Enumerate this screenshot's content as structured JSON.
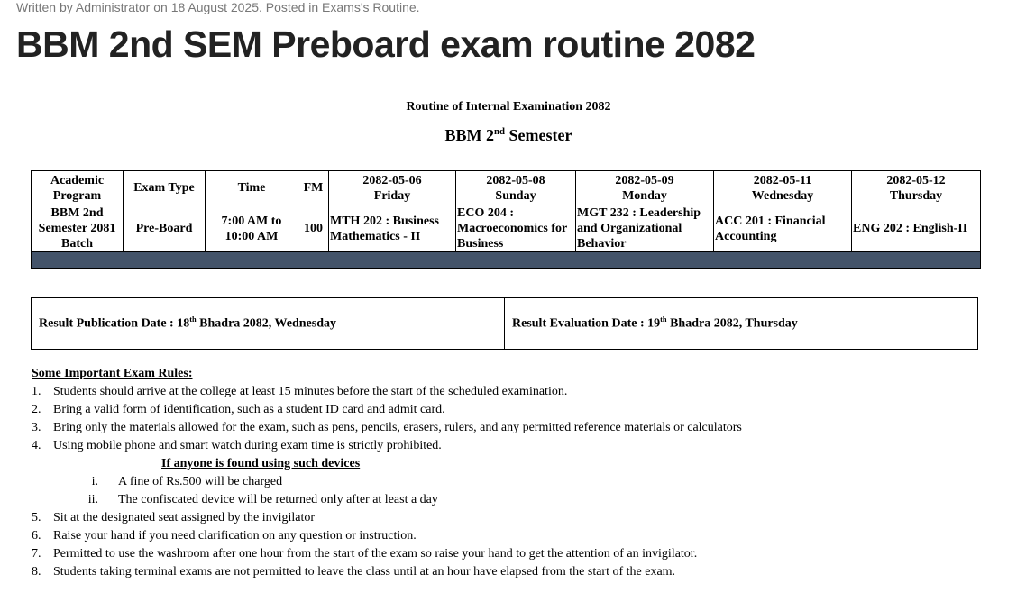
{
  "meta": "Written by Administrator on 18 August 2025. Posted in Exams's Routine.",
  "title": "BBM 2nd SEM Preboard exam routine 2082",
  "caption1": "Routine of Internal Examination 2082",
  "caption2": {
    "pre": "BBM 2",
    "sup": "nd",
    "post": " Semester"
  },
  "table": {
    "headers": [
      "Academic Program",
      "Exam Type",
      "Time",
      "FM"
    ],
    "dates": [
      {
        "date": "2082-05-06",
        "day": "Friday"
      },
      {
        "date": "2082-05-08",
        "day": "Sunday"
      },
      {
        "date": "2082-05-09",
        "day": "Monday"
      },
      {
        "date": "2082-05-11",
        "day": "Wednesday"
      },
      {
        "date": "2082-05-12",
        "day": "Thursday"
      }
    ],
    "row": {
      "program": "BBM 2nd Semester 2081 Batch",
      "type": "Pre-Board",
      "time": "7:00 AM to 10:00 AM",
      "fm": "100",
      "subjects": [
        "MTH 202 : Business Mathematics - II",
        "ECO 204 : Macroeconomics for Business",
        "MGT 232 :  Leadership and Organizational Behavior",
        "ACC 201 :  Financial Accounting",
        "ENG 202 :  English-II"
      ]
    },
    "footer_color": "#44546a"
  },
  "results": {
    "publication": {
      "label": "Result Publication Date : 18",
      "sup": "th",
      "rest": " Bhadra 2082, Wednesday"
    },
    "evaluation": {
      "label": "Result Evaluation Date :  19",
      "sup": "th",
      "rest": " Bhadra 2082, Thursday"
    }
  },
  "rules": {
    "heading": "Some Important Exam Rules:",
    "items": [
      {
        "n": "1.",
        "t": "Students should arrive at the college at least 15 minutes before the start of the scheduled examination."
      },
      {
        "n": "2.",
        "t": "Bring a valid form of identification, such as a student ID card and admit card."
      },
      {
        "n": "3.",
        "t": "Bring only the materials allowed for the exam, such as pens, pencils, erasers, rulers, and any permitted reference materials or calculators"
      },
      {
        "n": "4.",
        "t": "Using mobile phone and smart watch during exam time is strictly prohibited."
      }
    ],
    "sub_heading": "If anyone is found using such devices",
    "sub_items": [
      {
        "n": "i.",
        "t": "A fine of Rs.500 will be charged"
      },
      {
        "n": "ii.",
        "t": "The confiscated device will be returned only after at least a day"
      }
    ],
    "items2": [
      {
        "n": "5.",
        "t": "Sit at the designated seat assigned by the invigilator"
      },
      {
        "n": "6.",
        "t": "Raise your hand if you need clarification on any question or instruction."
      },
      {
        "n": "7.",
        "t": "Permitted to use the washroom after one hour from the start of the exam so raise your hand to get the attention of an invigilator."
      },
      {
        "n": "8.",
        "t": "Students taking terminal exams are not permitted to leave the class until at an hour have elapsed from the start of the exam."
      }
    ]
  }
}
